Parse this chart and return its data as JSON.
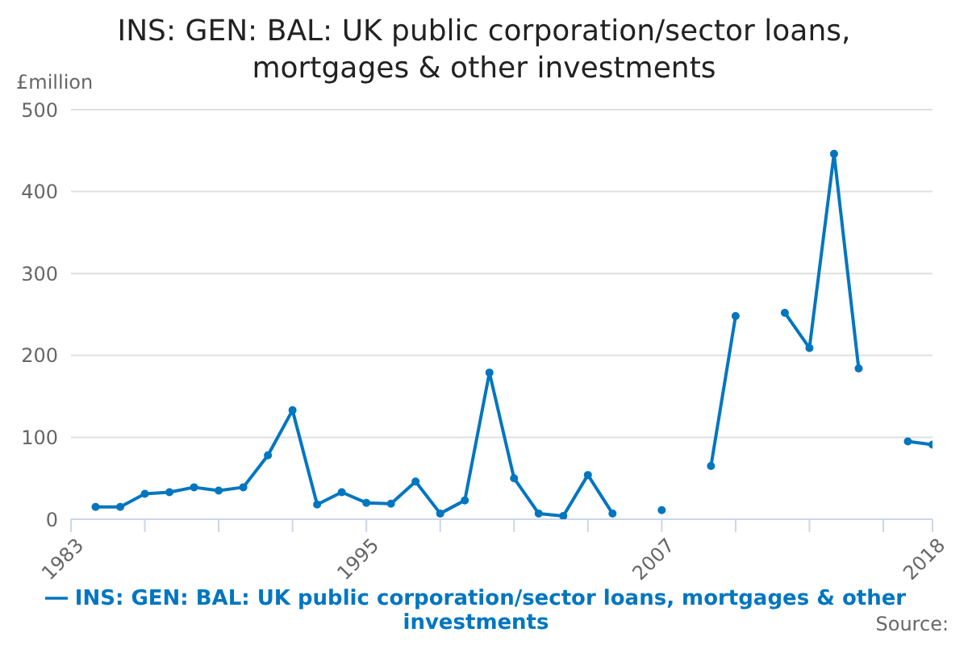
{
  "chart_data": {
    "type": "line",
    "title": "INS: GEN: BAL: UK public corporation/sector loans, mortgages & other investments",
    "ylabel": "£million",
    "x": [
      1984,
      1985,
      1986,
      1987,
      1988,
      1989,
      1990,
      1991,
      1992,
      1993,
      1994,
      1995,
      1996,
      1997,
      1998,
      1999,
      2000,
      2001,
      2002,
      2003,
      2004,
      2005,
      2006,
      2007,
      2008,
      2009,
      2010,
      2011,
      2012,
      2013,
      2014,
      2015,
      2016,
      2017,
      2018
    ],
    "series": [
      {
        "name": "INS: GEN: BAL: UK public corporation/sector loans, mortgages & other investments",
        "color": "#0076c0",
        "values": [
          15,
          15,
          31,
          33,
          39,
          35,
          39,
          78,
          133,
          18,
          33,
          20,
          19,
          46,
          7,
          23,
          179,
          50,
          7,
          4,
          54,
          7,
          null,
          11,
          null,
          65,
          248,
          null,
          252,
          209,
          446,
          184,
          null,
          95,
          91
        ]
      }
    ],
    "xlim": [
      1983,
      2018
    ],
    "xticks": [
      1983,
      {
        "value": 1986,
        "label": null
      },
      {
        "value": 1989,
        "label": null
      },
      {
        "value": 1992,
        "label": null
      },
      1995,
      {
        "value": 1998,
        "label": null
      },
      {
        "value": 2001,
        "label": null
      },
      {
        "value": 2004,
        "label": null
      },
      2007,
      {
        "value": 2010,
        "label": null
      },
      {
        "value": 2013,
        "label": null
      },
      {
        "value": 2016,
        "label": null
      },
      2018
    ],
    "ylim": [
      0,
      500
    ],
    "yticks": [
      0,
      100,
      200,
      300,
      400,
      500
    ],
    "grid": "y",
    "legend": "bottom",
    "marker": "circle",
    "line_style": "solid",
    "annotations": [
      "Source:"
    ]
  }
}
